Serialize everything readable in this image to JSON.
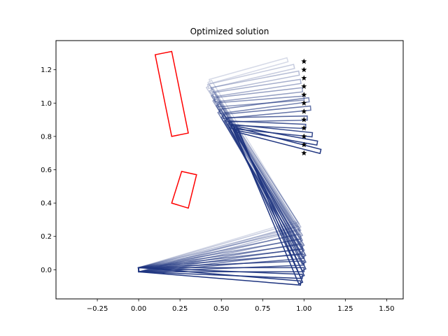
{
  "chart_data": {
    "type": "line",
    "title": "Optimized solution",
    "xlabel": "",
    "ylabel": "",
    "xlim": [
      -0.5,
      1.6
    ],
    "ylim": [
      -0.175,
      1.375
    ],
    "x_ticks": [
      -0.25,
      0.0,
      0.25,
      0.5,
      0.75,
      1.0,
      1.25,
      1.5
    ],
    "x_tick_labels": [
      "−0.25",
      "0.00",
      "0.25",
      "0.50",
      "0.75",
      "1.00",
      "1.25",
      "1.50"
    ],
    "y_ticks": [
      0.0,
      0.2,
      0.4,
      0.6,
      0.8,
      1.0,
      1.2
    ],
    "y_tick_labels": [
      "0.0",
      "0.2",
      "0.4",
      "0.6",
      "0.8",
      "1.0",
      "1.2"
    ],
    "grid": false,
    "link_color": "#1f3580",
    "obstacle_color": "#ff0000",
    "target_color": "#000000",
    "obstacles": [
      {
        "polygon": [
          [
            0.1,
            1.29
          ],
          [
            0.2,
            1.31
          ],
          [
            0.3,
            0.82
          ],
          [
            0.2,
            0.8
          ]
        ]
      },
      {
        "polygon": [
          [
            0.2,
            0.4
          ],
          [
            0.3,
            0.37
          ],
          [
            0.35,
            0.57
          ],
          [
            0.26,
            0.59
          ]
        ]
      }
    ],
    "targets": {
      "x": [
        1.0,
        1.0,
        1.0,
        1.0,
        1.0,
        1.0,
        1.0,
        1.0,
        1.0,
        1.0,
        1.0,
        1.0
      ],
      "y": [
        0.7,
        0.75,
        0.8,
        0.85,
        0.9,
        0.95,
        1.0,
        1.05,
        1.1,
        1.15,
        1.2,
        1.25
      ]
    },
    "link_width": 0.025,
    "configurations": [
      {
        "opacity": 0.18,
        "joints": [
          [
            0,
            0
          ],
          [
            0.95,
            0.28
          ],
          [
            0.43,
            1.13
          ],
          [
            0.9,
            1.26
          ]
        ]
      },
      {
        "opacity": 0.25,
        "joints": [
          [
            0,
            0
          ],
          [
            0.96,
            0.27
          ],
          [
            0.42,
            1.1
          ],
          [
            0.94,
            1.22
          ]
        ]
      },
      {
        "opacity": 0.32,
        "joints": [
          [
            0,
            0
          ],
          [
            0.97,
            0.25
          ],
          [
            0.44,
            1.08
          ],
          [
            0.97,
            1.18
          ]
        ]
      },
      {
        "opacity": 0.4,
        "joints": [
          [
            0,
            0
          ],
          [
            0.97,
            0.23
          ],
          [
            0.45,
            1.05
          ],
          [
            0.98,
            1.13
          ]
        ]
      },
      {
        "opacity": 0.47,
        "joints": [
          [
            0,
            0
          ],
          [
            0.98,
            0.2
          ],
          [
            0.46,
            1.02
          ],
          [
            0.99,
            1.08
          ]
        ]
      },
      {
        "opacity": 0.54,
        "joints": [
          [
            0,
            0
          ],
          [
            0.98,
            0.17
          ],
          [
            0.48,
            0.99
          ],
          [
            1.0,
            1.03
          ]
        ]
      },
      {
        "opacity": 0.61,
        "joints": [
          [
            0,
            0
          ],
          [
            0.99,
            0.14
          ],
          [
            0.49,
            0.95
          ],
          [
            1.03,
            1.02
          ]
        ]
      },
      {
        "opacity": 0.68,
        "joints": [
          [
            0,
            0
          ],
          [
            0.99,
            0.11
          ],
          [
            0.51,
            0.92
          ],
          [
            1.04,
            0.97
          ]
        ]
      },
      {
        "opacity": 0.75,
        "joints": [
          [
            0,
            0
          ],
          [
            1.0,
            0.08
          ],
          [
            0.53,
            0.9
          ],
          [
            1.02,
            0.91
          ]
        ]
      },
      {
        "opacity": 0.82,
        "joints": [
          [
            0,
            0
          ],
          [
            1.0,
            0.04
          ],
          [
            0.55,
            0.88
          ],
          [
            1.01,
            0.86
          ]
        ]
      },
      {
        "opacity": 0.89,
        "joints": [
          [
            0,
            0
          ],
          [
            1.0,
            0.0
          ],
          [
            0.56,
            0.86
          ],
          [
            1.05,
            0.81
          ]
        ]
      },
      {
        "opacity": 0.95,
        "joints": [
          [
            0,
            0
          ],
          [
            0.99,
            -0.04
          ],
          [
            0.58,
            0.85
          ],
          [
            1.08,
            0.76
          ]
        ]
      },
      {
        "opacity": 1.0,
        "joints": [
          [
            0,
            0
          ],
          [
            0.98,
            -0.08
          ],
          [
            0.59,
            0.84
          ],
          [
            1.1,
            0.71
          ]
        ]
      }
    ]
  }
}
